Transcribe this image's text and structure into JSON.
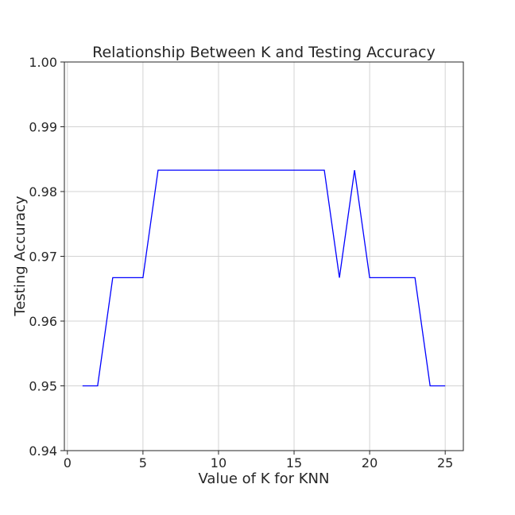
{
  "chart_data": {
    "type": "line",
    "title": "Relationship Between K and Testing Accuracy",
    "xlabel": "Value of K for KNN",
    "ylabel": "Testing Accuracy",
    "xlim": [
      -0.2,
      26.2
    ],
    "ylim": [
      0.94,
      1.0
    ],
    "xticks": [
      0,
      5,
      10,
      15,
      20,
      25
    ],
    "xtick_labels": [
      "0",
      "5",
      "10",
      "15",
      "20",
      "25"
    ],
    "yticks": [
      0.94,
      0.95,
      0.96,
      0.97,
      0.98,
      0.99,
      1.0
    ],
    "ytick_labels": [
      "0.94",
      "0.95",
      "0.96",
      "0.97",
      "0.98",
      "0.99",
      "1.00"
    ],
    "grid": true,
    "line_color": "#0000ff",
    "series": [
      {
        "x": [
          1,
          2,
          3,
          4,
          5,
          6,
          7,
          8,
          9,
          10,
          11,
          12,
          13,
          14,
          15,
          16,
          17,
          18,
          19,
          20,
          21,
          22,
          23,
          24,
          25
        ],
        "values": [
          0.95,
          0.95,
          0.9667,
          0.9667,
          0.9667,
          0.9833,
          0.9833,
          0.9833,
          0.9833,
          0.9833,
          0.9833,
          0.9833,
          0.9833,
          0.9833,
          0.9833,
          0.9833,
          0.9833,
          0.9667,
          0.9833,
          0.9667,
          0.9667,
          0.9667,
          0.9667,
          0.95,
          0.95
        ]
      }
    ]
  }
}
